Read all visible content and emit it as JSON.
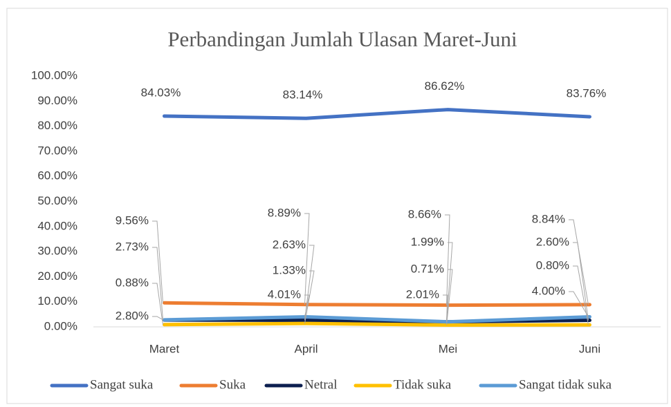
{
  "chart_data": {
    "type": "line",
    "title": "Perbandingan Jumlah Ulasan Maret-Juni",
    "categories": [
      "Maret",
      "April",
      "Mei",
      "Juni"
    ],
    "series": [
      {
        "name": "Sangat suka",
        "color": "#4472c4",
        "values": [
          84.03,
          83.14,
          86.62,
          83.76
        ],
        "value_labels": [
          "84.03%",
          "83.14%",
          "86.62%",
          "83.76%"
        ]
      },
      {
        "name": "Suka",
        "color": "#ed7d31",
        "values": [
          9.56,
          8.89,
          8.66,
          8.84
        ],
        "value_labels": [
          "9.56%",
          "8.89%",
          "8.66%",
          "8.84%"
        ]
      },
      {
        "name": "Netral",
        "color": "#0c1f4f",
        "values": [
          2.73,
          2.63,
          1.99,
          2.6
        ],
        "value_labels": [
          "2.73%",
          "2.63%",
          "1.99%",
          "2.60%"
        ]
      },
      {
        "name": "Tidak suka",
        "color": "#ffc000",
        "values": [
          0.88,
          1.33,
          0.71,
          0.8
        ],
        "value_labels": [
          "0.88%",
          "1.33%",
          "0.71%",
          "0.80%"
        ]
      },
      {
        "name": "Sangat tidak suka",
        "color": "#5b9bd5",
        "values": [
          2.8,
          4.01,
          2.01,
          4.0
        ],
        "value_labels": [
          "2.80%",
          "4.01%",
          "2.01%",
          "4.00%"
        ]
      }
    ],
    "ylim": [
      0,
      100
    ],
    "yticks": [
      {
        "value": 0,
        "label": "0.00%"
      },
      {
        "value": 10,
        "label": "10.00%"
      },
      {
        "value": 20,
        "label": "20.00%"
      },
      {
        "value": 30,
        "label": "30.00%"
      },
      {
        "value": 40,
        "label": "40.00%"
      },
      {
        "value": 50,
        "label": "50.00%"
      },
      {
        "value": 60,
        "label": "60.00%"
      },
      {
        "value": 70,
        "label": "70.00%"
      },
      {
        "value": 80,
        "label": "80.00%"
      },
      {
        "value": 90,
        "label": "90.00%"
      },
      {
        "value": 100,
        "label": "100.00%"
      }
    ],
    "grid": false,
    "legend": "bottom"
  }
}
